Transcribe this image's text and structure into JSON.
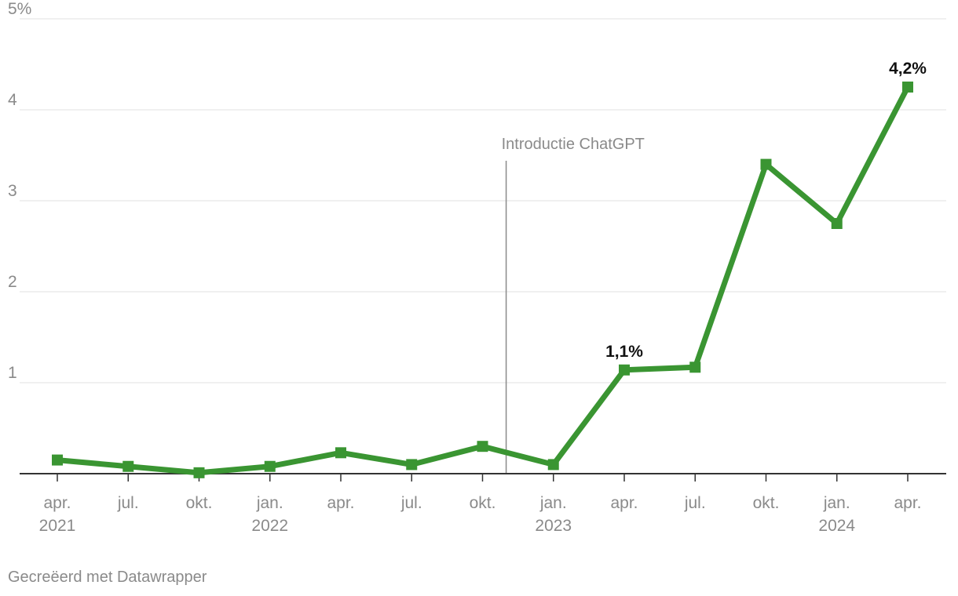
{
  "chart_data": {
    "type": "line",
    "x": [
      "2021-04",
      "2021-07",
      "2021-10",
      "2022-01",
      "2022-04",
      "2022-07",
      "2022-10",
      "2023-01",
      "2023-04",
      "2023-07",
      "2023-10",
      "2024-01",
      "2024-04"
    ],
    "series": [
      {
        "values": [
          0.15,
          0.08,
          0.01,
          0.08,
          0.23,
          0.1,
          0.3,
          0.1,
          1.14,
          1.17,
          3.4,
          2.75,
          4.25
        ]
      }
    ],
    "x_tick_labels": [
      {
        "month": "apr.",
        "year": "2021"
      },
      {
        "month": "jul.",
        "year": ""
      },
      {
        "month": "okt.",
        "year": ""
      },
      {
        "month": "jan.",
        "year": "2022"
      },
      {
        "month": "apr.",
        "year": ""
      },
      {
        "month": "jul.",
        "year": ""
      },
      {
        "month": "okt.",
        "year": ""
      },
      {
        "month": "jan.",
        "year": "2023"
      },
      {
        "month": "apr.",
        "year": ""
      },
      {
        "month": "jul.",
        "year": ""
      },
      {
        "month": "okt.",
        "year": ""
      },
      {
        "month": "jan.",
        "year": "2024"
      },
      {
        "month": "apr.",
        "year": ""
      }
    ],
    "y_ticks": [
      {
        "value": 1,
        "label": "1"
      },
      {
        "value": 2,
        "label": "2"
      },
      {
        "value": 3,
        "label": "3"
      },
      {
        "value": 4,
        "label": "4"
      },
      {
        "value": 5,
        "label": "5%"
      }
    ],
    "ylim": [
      0,
      5
    ],
    "grid": true,
    "data_labels": [
      {
        "index": 8,
        "text": "1,1%"
      },
      {
        "index": 12,
        "text": "4,2%"
      }
    ],
    "annotation": {
      "text": "Introductie ChatGPT",
      "x": "2022-11"
    },
    "colors": {
      "line": "#3a9532",
      "grid": "#e0e0e0",
      "axis": "#333333",
      "tick_text": "#8a8a8a",
      "annotation_line": "#8a8a8a",
      "label_text": "#111111"
    }
  },
  "footer": {
    "credit": "Gecreëerd met Datawrapper"
  }
}
